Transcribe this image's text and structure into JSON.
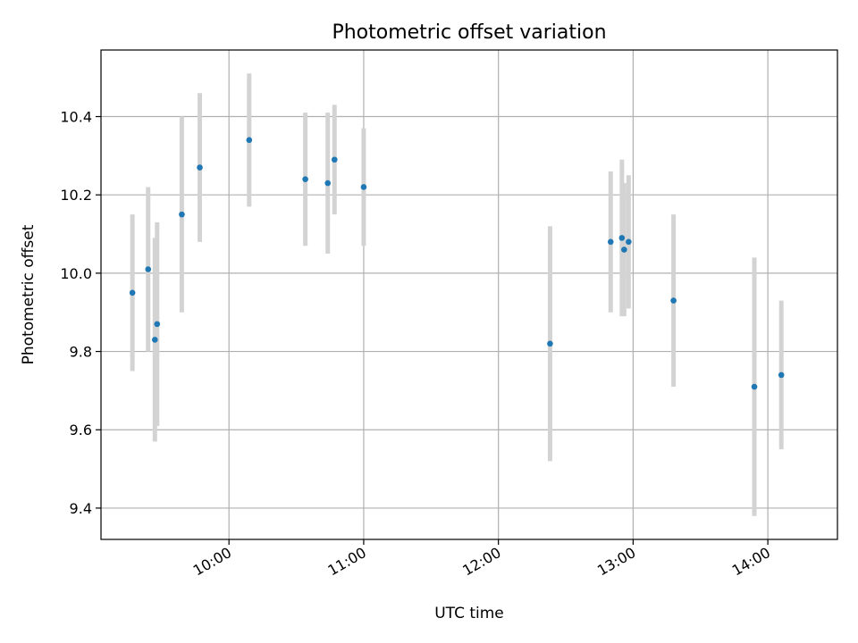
{
  "chart_data": {
    "type": "scatter",
    "title": "Photometric offset variation",
    "xlabel": "UTC time",
    "ylabel": "Photometric offset",
    "x_ticks": [
      "10:00",
      "11:00",
      "12:00",
      "13:00",
      "14:00"
    ],
    "y_ticks": [
      "9.4",
      "9.6",
      "9.8",
      "10.0",
      "10.2",
      "10.4"
    ],
    "xlim": [
      "09:03",
      "14:31"
    ],
    "ylim": [
      9.32,
      10.57
    ],
    "grid": true,
    "colors": {
      "points": "#1f77b4",
      "error_bars": "#d3d3d3"
    },
    "points": [
      {
        "t": "09:17",
        "y": 9.95,
        "err": 0.2
      },
      {
        "t": "09:24",
        "y": 10.01,
        "err": 0.21
      },
      {
        "t": "09:27",
        "y": 9.83,
        "err": 0.26
      },
      {
        "t": "09:28",
        "y": 9.87,
        "err": 0.26
      },
      {
        "t": "09:39",
        "y": 10.15,
        "err": 0.25
      },
      {
        "t": "09:47",
        "y": 10.27,
        "err": 0.19
      },
      {
        "t": "10:09",
        "y": 10.34,
        "err": 0.17
      },
      {
        "t": "10:34",
        "y": 10.24,
        "err": 0.17
      },
      {
        "t": "10:44",
        "y": 10.23,
        "err": 0.18
      },
      {
        "t": "10:47",
        "y": 10.29,
        "err": 0.14
      },
      {
        "t": "11:00",
        "y": 10.22,
        "err": 0.15
      },
      {
        "t": "12:23",
        "y": 9.82,
        "err": 0.3
      },
      {
        "t": "12:50",
        "y": 10.08,
        "err": 0.18
      },
      {
        "t": "12:55",
        "y": 10.09,
        "err": 0.2
      },
      {
        "t": "12:56",
        "y": 10.06,
        "err": 0.17
      },
      {
        "t": "12:58",
        "y": 10.08,
        "err": 0.17
      },
      {
        "t": "13:18",
        "y": 9.93,
        "err": 0.22
      },
      {
        "t": "13:54",
        "y": 9.71,
        "err": 0.33
      },
      {
        "t": "14:06",
        "y": 9.74,
        "err": 0.19
      }
    ]
  }
}
